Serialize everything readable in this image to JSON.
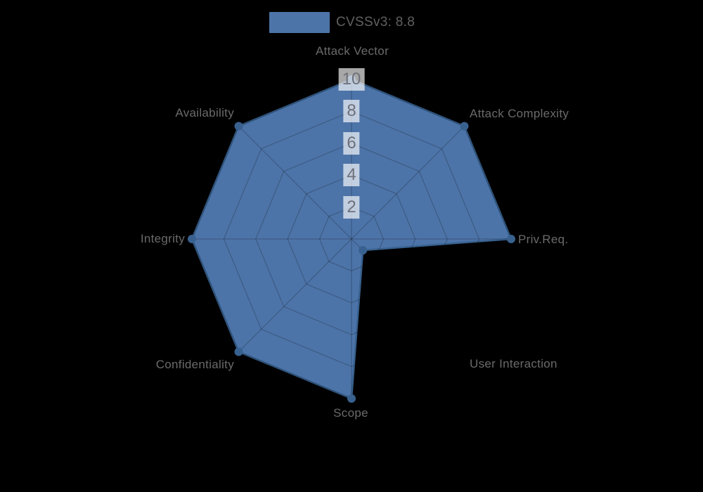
{
  "legend": {
    "items": [
      {
        "label": "CVSSv3: 8.8",
        "color": "#4d74a8"
      }
    ]
  },
  "chart_data": {
    "type": "radar",
    "title": "CVSSv3: 8.8",
    "axes": [
      "Attack Vector",
      "Attack Complexity",
      "Priv.Req.",
      "User Interaction",
      "Scope",
      "Confidentiality",
      "Integrity",
      "Availability"
    ],
    "series": [
      {
        "name": "CVSSv3: 8.8",
        "values": [
          10,
          10,
          10,
          1,
          10,
          10,
          10,
          10
        ]
      }
    ],
    "scale": {
      "min": 0,
      "max": 10,
      "ticks": [
        2,
        4,
        6,
        8,
        10
      ]
    },
    "grid_shape": "polygon",
    "legend_position": "top-center",
    "colors": {
      "area": "#4d74a8",
      "line": "#38618f",
      "symbol": "#38618f",
      "grid_line": "rgba(0,0,0,0.2)",
      "tick_box": "rgba(255,255,255,0.66)",
      "tick_text": "#6E7079",
      "axis_label": "#6a6a6a",
      "legend_text": "#606060",
      "background": "#000000"
    }
  }
}
